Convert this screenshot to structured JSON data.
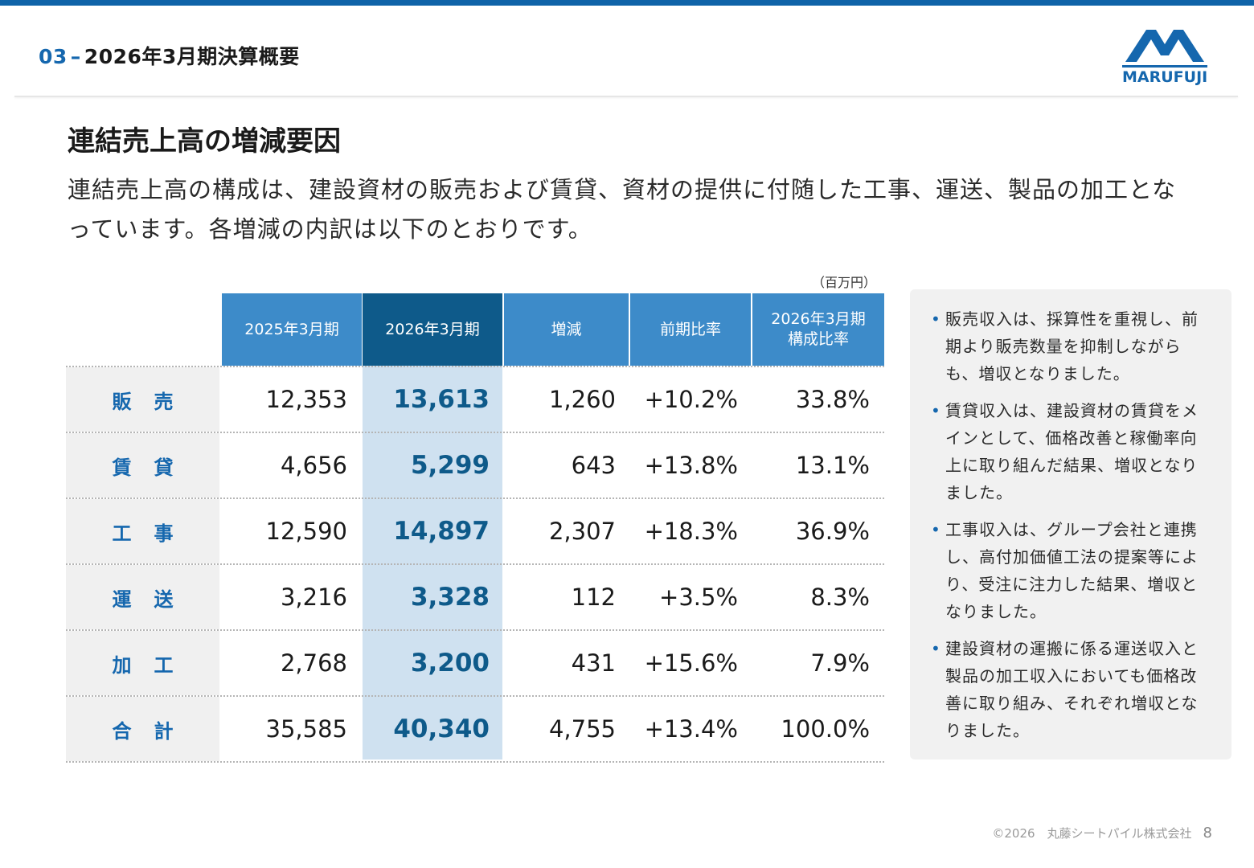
{
  "header": {
    "section_number": "03",
    "section_dash": "–",
    "section_title": "2026年3月期決算概要",
    "logo_text": "MARUFUJI"
  },
  "page": {
    "heading": "連結売上高の増減要因",
    "lead": "連結売上高の構成は、建設資材の販売および賃貸、資材の提供に付随した工事、運送、製品の加工となっています。各増減の内訳は以下のとおりです。"
  },
  "table": {
    "unit": "（百万円）",
    "columns": [
      "2025年3月期",
      "2026年3月期",
      "増減",
      "前期比率",
      "2026年3月期\n構成比率"
    ],
    "rows": [
      {
        "label": "販売",
        "prev": "12,353",
        "cur": "13,613",
        "diff": "1,260",
        "ratio": "+10.2%",
        "share": "33.8%"
      },
      {
        "label": "賃貸",
        "prev": "4,656",
        "cur": "5,299",
        "diff": "643",
        "ratio": "+13.8%",
        "share": "13.1%"
      },
      {
        "label": "工事",
        "prev": "12,590",
        "cur": "14,897",
        "diff": "2,307",
        "ratio": "+18.3%",
        "share": "36.9%"
      },
      {
        "label": "運送",
        "prev": "3,216",
        "cur": "3,328",
        "diff": "112",
        "ratio": "+3.5%",
        "share": "8.3%"
      },
      {
        "label": "加工",
        "prev": "2,768",
        "cur": "3,200",
        "diff": "431",
        "ratio": "+15.6%",
        "share": "7.9%"
      },
      {
        "label": "合計",
        "prev": "35,585",
        "cur": "40,340",
        "diff": "4,755",
        "ratio": "+13.4%",
        "share": "100.0%"
      }
    ]
  },
  "notes": [
    "販売収入は、採算性を重視し、前期より販売数量を抑制しながらも、増収となりました。",
    "賃貸収入は、建設資材の賃貸をメインとして、価格改善と稼働率向上に取り組んだ結果、増収となりました。",
    "工事収入は、グループ会社と連携し、高付加価値工法の提案等により、受注に注力した結果、増収となりました。",
    "建設資材の運搬に係る運送収入と製品の加工収入においても価格改善に取り組み、それぞれ増収となりました。"
  ],
  "footer": {
    "copyright": "©2026　丸藤シートパイル株式会社",
    "page_number": "8"
  },
  "colors": {
    "brand_blue": "#1567ae",
    "header_blue": "#3d8bc9",
    "current_header": "#0e5a8a",
    "current_band": "#cfe1f0"
  }
}
